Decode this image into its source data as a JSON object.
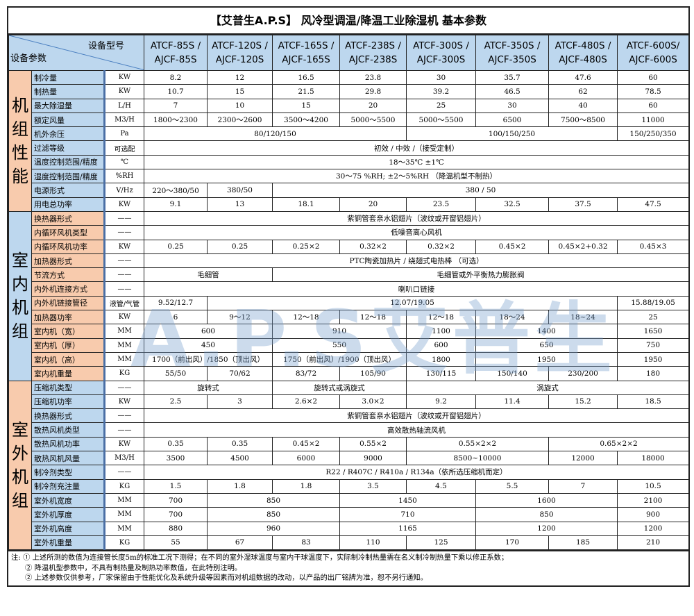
{
  "title": "【艾普生A.P.S】  风冷型调温/降温工业除湿机 基本参数",
  "header": {
    "corner_top": "设备型号",
    "corner_bottom": "设备参数",
    "models": [
      [
        "ATCF-85S /",
        "AJCF-85S"
      ],
      [
        "ATCF-120S /",
        "AJCF-120S"
      ],
      [
        "ATCF-165S /",
        "AJCF-165S"
      ],
      [
        "ATCF-238S /",
        "AJCF-238S"
      ],
      [
        "ATCF-300S /",
        "AJCF-300S"
      ],
      [
        "ATCF-350S /",
        "AJCF-350S"
      ],
      [
        "ATCF-480S /",
        "AJCF-480S"
      ],
      [
        "ATCF-600S/",
        "AJCF-600S"
      ]
    ]
  },
  "colors": {
    "blue": "#bdd7ee",
    "peach": "#f8cbad"
  },
  "sections": [
    {
      "name": "机组性能",
      "section_color": "peach",
      "param_color": "blue",
      "rows": [
        {
          "label": "制冷量",
          "unit": "KW",
          "cells": [
            [
              "8.2",
              1
            ],
            [
              "12",
              1
            ],
            [
              "16.5",
              1
            ],
            [
              "23.8",
              1
            ],
            [
              "30",
              1
            ],
            [
              "35.7",
              1
            ],
            [
              "47.6",
              1
            ],
            [
              "60",
              1
            ]
          ]
        },
        {
          "label": "制热量",
          "unit": "KW",
          "cells": [
            [
              "10.7",
              1
            ],
            [
              "15",
              1
            ],
            [
              "21.5",
              1
            ],
            [
              "29.8",
              1
            ],
            [
              "39.2",
              1
            ],
            [
              "46.5",
              1
            ],
            [
              "62",
              1
            ],
            [
              "78.5",
              1
            ]
          ]
        },
        {
          "label": "最大除湿量",
          "unit": "L/H",
          "cells": [
            [
              "7",
              1
            ],
            [
              "10",
              1
            ],
            [
              "15",
              1
            ],
            [
              "20",
              1
            ],
            [
              "25",
              1
            ],
            [
              "30",
              1
            ],
            [
              "40",
              1
            ],
            [
              "60",
              1
            ]
          ]
        },
        {
          "label": "额定风量",
          "unit": "M3/H",
          "cells": [
            [
              "1800～2300",
              1
            ],
            [
              "2300～2600",
              1
            ],
            [
              "3500～4200",
              1
            ],
            [
              "5000～5500",
              1
            ],
            [
              "5000～5500",
              1
            ],
            [
              "6500",
              1
            ],
            [
              "7500～8500",
              1
            ],
            [
              "11000",
              1
            ]
          ]
        },
        {
          "label": "机外余压",
          "unit": "Pa",
          "cells": [
            [
              "80/120/150",
              4
            ],
            [
              "100/150/250",
              3
            ],
            [
              "150/250/350",
              1
            ]
          ]
        },
        {
          "label": "过滤等级",
          "unit": "可选配",
          "cells": [
            [
              "初效 / 中效 /（接受定制）",
              8
            ]
          ]
        },
        {
          "label": "温度控制范围/精度",
          "unit": "℃",
          "cells": [
            [
              "18～35℃  ±1℃",
              8
            ]
          ]
        },
        {
          "label": "湿度控制范围/精度",
          "unit": "%RH",
          "cells": [
            [
              "30～75 %RH;  ±2～5%RH  （降温机型不制热）",
              8
            ]
          ]
        },
        {
          "label": "电源形式",
          "unit": "V/Hz",
          "cells": [
            [
              "220～380/50",
              1
            ],
            [
              "380/50",
              1
            ],
            [
              "380 / 50",
              6
            ]
          ]
        },
        {
          "label": "用电总功率",
          "unit": "KW",
          "cells": [
            [
              "9.1",
              1
            ],
            [
              "13",
              1
            ],
            [
              "18.1",
              1
            ],
            [
              "20",
              1
            ],
            [
              "23.5",
              1
            ],
            [
              "32.5",
              1
            ],
            [
              "37.5",
              1
            ],
            [
              "47.5",
              1
            ]
          ]
        }
      ]
    },
    {
      "name": "室内机组",
      "section_color": "blue",
      "param_color": "peach",
      "rows": [
        {
          "label": "换热器形式",
          "unit": "——",
          "cells": [
            [
              "紫铜管套亲水铝翅片（波纹或开窗铝翅片）",
              8
            ]
          ]
        },
        {
          "label": "内循环风机类型",
          "unit": "——",
          "cells": [
            [
              "低噪音离心风机",
              8
            ]
          ]
        },
        {
          "label": "内循环风机功率",
          "unit": "KW",
          "cells": [
            [
              "0.25",
              1
            ],
            [
              "0.25",
              1
            ],
            [
              "0.25×2",
              1
            ],
            [
              "0.32×2",
              1
            ],
            [
              "0.32×2",
              1
            ],
            [
              "0.45×2",
              1
            ],
            [
              "0.45×2+0.32",
              1
            ],
            [
              "0.45×3",
              1
            ]
          ]
        },
        {
          "label": "加热器形式",
          "unit": "——",
          "cells": [
            [
              "PTC陶瓷加热片  /  绕翅式电热棒  （可选）",
              8
            ]
          ]
        },
        {
          "label": "节流方式",
          "unit": "——",
          "cells": [
            [
              "毛细管",
              2
            ],
            [
              "毛细管或外平衡热力膨胀阀",
              6
            ]
          ]
        },
        {
          "label": "内外机连接方式",
          "unit": "——",
          "cells": [
            [
              "喇叭口链接",
              8
            ]
          ]
        },
        {
          "label": "内外机链接管径",
          "unit": "液管/气管",
          "cells": [
            [
              "9.52/12.7",
              1
            ],
            [
              "12.07/19.05",
              6
            ],
            [
              "15.88/19.05",
              1
            ]
          ]
        },
        {
          "label": "加热器功率",
          "unit": "KW",
          "cells": [
            [
              "6",
              1
            ],
            [
              "9～12",
              1
            ],
            [
              "12～18",
              1
            ],
            [
              "12～18",
              1
            ],
            [
              "12～18",
              1
            ],
            [
              "18～24",
              1
            ],
            [
              "18~24",
              1
            ],
            [
              "25",
              1
            ]
          ]
        },
        {
          "label": "室内机（宽）",
          "unit": "MM",
          "cells": [
            [
              "600",
              2
            ],
            [
              "910",
              2
            ],
            [
              "1100",
              1
            ],
            [
              "1400",
              2
            ],
            [
              "1650",
              1
            ]
          ]
        },
        {
          "label": "室内机（厚）",
          "unit": "MM",
          "cells": [
            [
              "450",
              2
            ],
            [
              "550",
              2
            ],
            [
              "600",
              1
            ],
            [
              "650",
              2
            ],
            [
              "750",
              1
            ]
          ]
        },
        {
          "label": "室内机（高）",
          "unit": "MM",
          "cells": [
            [
              "1700（前出风）/1850（顶出风）",
              2
            ],
            [
              "1750（前出风）/1900（顶出风）",
              2
            ],
            [
              "1800",
              1
            ],
            [
              "1950",
              2
            ],
            [
              "1950",
              1
            ]
          ]
        },
        {
          "label": "室内机重量",
          "unit": "KG",
          "cells": [
            [
              "55/50",
              1
            ],
            [
              "70/62",
              1
            ],
            [
              "83/72",
              1
            ],
            [
              "105/90",
              1
            ],
            [
              "130/115",
              1
            ],
            [
              "150/140",
              1
            ],
            [
              "230/200",
              1
            ],
            [
              "180",
              1
            ]
          ]
        }
      ]
    },
    {
      "name": "室外机组",
      "section_color": "peach",
      "param_color": "blue",
      "rows": [
        {
          "label": "压缩机类型",
          "unit": "——",
          "cells": [
            [
              "旋转式",
              2
            ],
            [
              "旋转式或涡旋式",
              2
            ],
            [
              "涡旋式",
              4
            ]
          ]
        },
        {
          "label": "压缩机功率",
          "unit": "KW",
          "cells": [
            [
              "2.5",
              1
            ],
            [
              "3",
              1
            ],
            [
              "2.6×2",
              1
            ],
            [
              "3.0×2",
              1
            ],
            [
              "9.2",
              1
            ],
            [
              "11.4",
              1
            ],
            [
              "15.2",
              1
            ],
            [
              "18.5",
              1
            ]
          ]
        },
        {
          "label": "换热器形式",
          "unit": "——",
          "cells": [
            [
              "紫铜管套亲水铝翅片（波纹或开窗铝翅片）",
              8
            ]
          ]
        },
        {
          "label": "散热风机类型",
          "unit": "——",
          "cells": [
            [
              "高效散热轴流风机",
              8
            ]
          ]
        },
        {
          "label": "散热风机功率",
          "unit": "KW",
          "cells": [
            [
              "0.35",
              1
            ],
            [
              "0.35",
              1
            ],
            [
              "0.45×2",
              1
            ],
            [
              "0.55×2",
              1
            ],
            [
              "0.55×2×2",
              2
            ],
            [
              "0.65×2×2",
              2
            ]
          ]
        },
        {
          "label": "散热风机风量",
          "unit": "M3/H",
          "cells": [
            [
              "3500",
              1
            ],
            [
              "4500",
              1
            ],
            [
              "6000",
              1
            ],
            [
              "9000",
              1
            ],
            [
              "8500~10000",
              2
            ],
            [
              "12000",
              1
            ],
            [
              "18000",
              1
            ]
          ]
        },
        {
          "label": "制冷剂类型",
          "unit": "——",
          "cells": [
            [
              "R22 / R407C / R410a / R134a（依所选压缩机而定）",
              8
            ]
          ]
        },
        {
          "label": "制冷剂充注量",
          "unit": "KG",
          "cells": [
            [
              "1.5",
              1
            ],
            [
              "1.8",
              1
            ],
            [
              "1.8",
              1
            ],
            [
              "3.5",
              1
            ],
            [
              "4.5",
              1
            ],
            [
              "5.5",
              1
            ],
            [
              "7",
              1
            ],
            [
              "10.5",
              1
            ]
          ]
        },
        {
          "label": "室外机宽度",
          "unit": "MM",
          "cells": [
            [
              "700",
              1
            ],
            [
              "850",
              2
            ],
            [
              "1450",
              2
            ],
            [
              "1600",
              2
            ],
            [
              "2100",
              1
            ]
          ]
        },
        {
          "label": "室外机厚度",
          "unit": "MM",
          "cells": [
            [
              "700",
              1
            ],
            [
              "850",
              2
            ],
            [
              "710",
              2
            ],
            [
              "850",
              2
            ],
            [
              "900",
              1
            ]
          ]
        },
        {
          "label": "室外机高度",
          "unit": "MM",
          "cells": [
            [
              "880",
              1
            ],
            [
              "960",
              2
            ],
            [
              "1165",
              2
            ],
            [
              "1200",
              2
            ],
            [
              "1200",
              1
            ]
          ]
        },
        {
          "label": "室外机重量",
          "unit": "KG",
          "cells": [
            [
              "55",
              1
            ],
            [
              "67",
              1
            ],
            [
              "83",
              1
            ],
            [
              "110",
              1
            ],
            [
              "125",
              1
            ],
            [
              "170",
              1
            ],
            [
              "185",
              1
            ],
            [
              "210",
              1
            ]
          ]
        }
      ]
    }
  ],
  "notes": {
    "prefix": "注:",
    "lines": [
      "① 上述所测的数值为连接管长度5m的标准工况下测得；在不同的室外湿球温度与室内干球温度下，实际制冷制热量需在名义制冷制热量下乘以修正系数；",
      "② 降温机型参数中，不具有制热量及制热功率数值，在此特别注明。",
      "② 上述参数仅供参考，厂家保留由于性能优化及系统升级等因素而对机组数据的改动，以产品的出厂铭牌为准，恕不另行通知。"
    ]
  },
  "watermark": "A.P.S艾普生"
}
